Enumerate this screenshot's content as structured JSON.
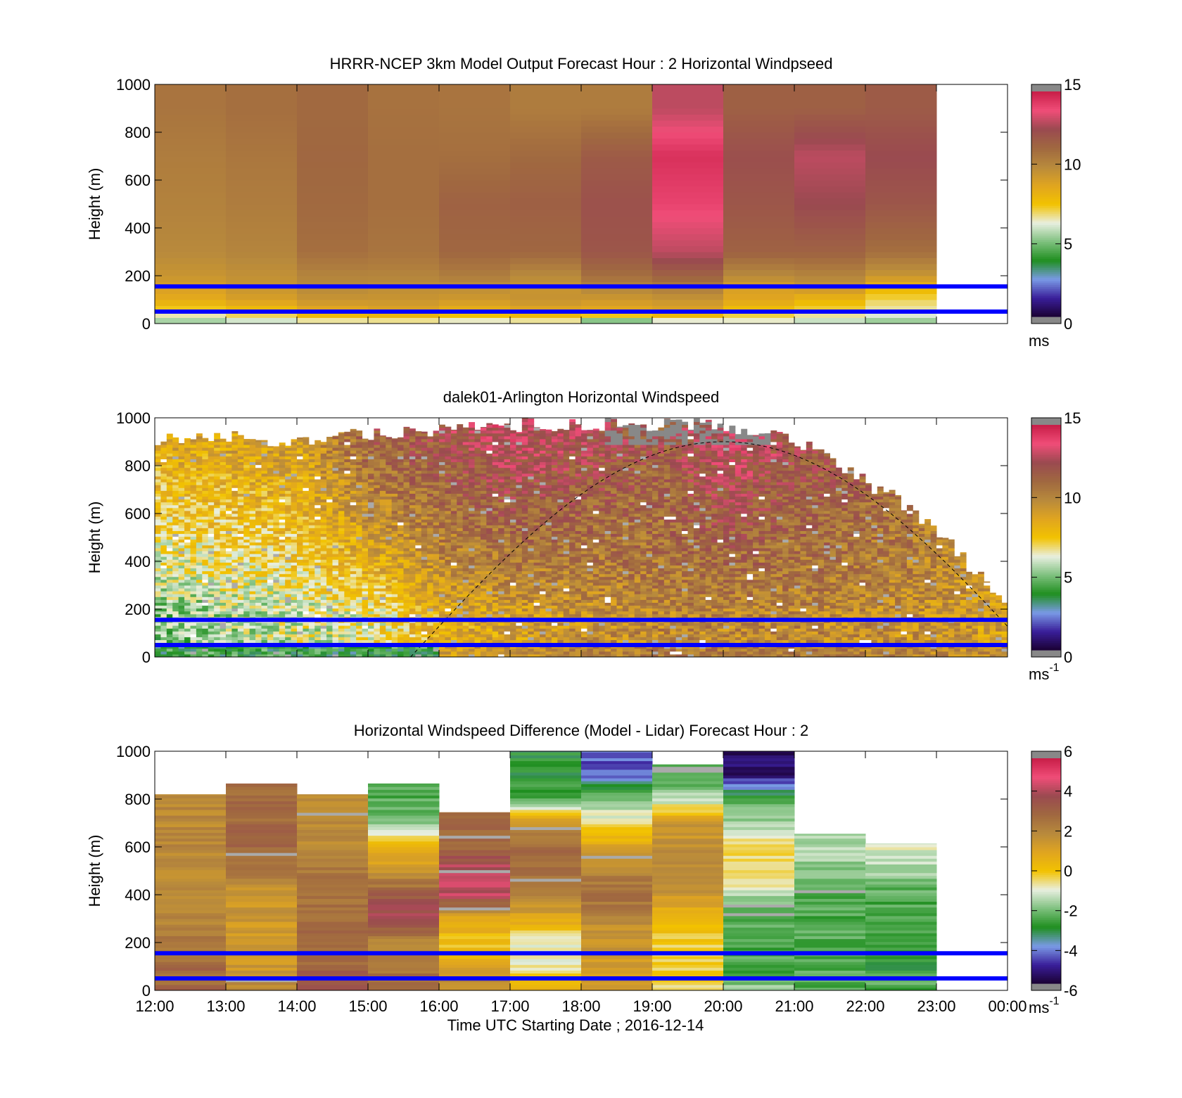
{
  "figure": {
    "xlabel": "Time UTC  Starting Date ; 2016-12-14"
  },
  "palettes": {
    "speed": {
      "colors": [
        "#1a0033",
        "#3a1f9a",
        "#7a9ae6",
        "#1f8f1f",
        "#7ec07e",
        "#e8efe0",
        "#f2c200",
        "#e0a520",
        "#b88a3c",
        "#a06840",
        "#9a4a50",
        "#f04d78",
        "#c81e48"
      ],
      "over": "#888888",
      "under": "#888888"
    },
    "diff": {
      "colors": [
        "#1a0033",
        "#3a1f9a",
        "#7a9ae6",
        "#1f8f1f",
        "#7ec07e",
        "#e8efe0",
        "#f2c200",
        "#e0a520",
        "#b88a3c",
        "#a06840",
        "#9a4a50",
        "#f04d78",
        "#c81e48"
      ],
      "over": "#888888",
      "under": "#888888"
    },
    "colorbar_gray_ends": true
  },
  "chart_data": [
    {
      "type": "heatmap",
      "name": "model",
      "title": "HRRR-NCEP 3km Model Output   Forecast Hour : 2 Horizontal Windpseed",
      "ylabel": "Height (m)",
      "ylim": [
        0,
        1000
      ],
      "yticks": [
        0,
        200,
        400,
        600,
        800,
        1000
      ],
      "xlim": [
        12,
        24
      ],
      "xticks": [
        12,
        13,
        14,
        15,
        16,
        17,
        18,
        19,
        20,
        21,
        22,
        23,
        24
      ],
      "show_xticklabels": false,
      "colorbar": {
        "min": 0,
        "max": 15,
        "ticks": [
          0,
          5,
          10,
          15
        ],
        "unit": "ms",
        "unit_sup": "",
        "palette": "speed"
      },
      "hlines": [
        50,
        155
      ],
      "hline_color": "#0000ff",
      "columns_start": 12,
      "columns_width": 1,
      "heights": [
        0,
        50,
        100,
        150,
        200,
        300,
        500,
        700,
        900,
        1000
      ],
      "columns": [
        [
          5,
          7,
          8.5,
          9,
          9.5,
          10,
          10.3,
          10.5,
          10.8
        ],
        [
          5.5,
          7.5,
          9,
          9.5,
          9.7,
          10.2,
          10.5,
          10.7,
          11
        ],
        [
          6,
          8.5,
          9.5,
          10,
          10.2,
          11,
          11.2,
          11.3,
          11.2
        ],
        [
          6,
          8.8,
          9.5,
          9.8,
          10.2,
          10.8,
          11,
          11,
          10.9
        ],
        [
          5.8,
          8.2,
          9.3,
          9.8,
          10.5,
          11.3,
          11.5,
          11,
          10.8
        ],
        [
          6,
          8.6,
          9.6,
          9.5,
          10,
          11.3,
          11.6,
          11.2,
          10.5
        ],
        [
          4,
          8.5,
          9.3,
          10.2,
          11,
          12,
          12.2,
          11.8,
          10.5
        ],
        [
          5.5,
          8.8,
          9.5,
          10.5,
          11.5,
          13,
          14,
          14.5,
          13
        ],
        [
          6,
          7.5,
          8.7,
          9,
          10,
          11.5,
          12,
          12.3,
          11.6
        ],
        [
          5.5,
          7,
          8,
          9.5,
          10.2,
          11.5,
          12.5,
          13,
          11.6
        ],
        [
          5,
          6.5,
          7,
          8,
          9.5,
          11,
          12,
          12.5,
          11.8
        ]
      ]
    },
    {
      "type": "heatmap",
      "name": "lidar",
      "title": "dalek01-Arlington  Horizontal Windspeed",
      "ylabel": "Height (m)",
      "ylim": [
        0,
        1000
      ],
      "yticks": [
        0,
        200,
        400,
        600,
        800,
        1000
      ],
      "xlim": [
        12,
        24
      ],
      "xticks": [
        12,
        13,
        14,
        15,
        16,
        17,
        18,
        19,
        20,
        21,
        22,
        23,
        24
      ],
      "show_xticklabels": false,
      "colorbar": {
        "min": 0,
        "max": 15,
        "ticks": [
          0,
          5,
          10,
          15
        ],
        "unit": "ms",
        "unit_sup": "-1",
        "palette": "speed"
      },
      "hlines": [
        50,
        155
      ],
      "hline_color": "#0000ff",
      "dashed_curve": {
        "start": 15.6,
        "peak": 20.0,
        "end": 24.0,
        "peak_height": 900
      },
      "lidar_top_by_hour": [
        [
          12,
          940
        ],
        [
          13,
          960
        ],
        [
          14,
          930
        ],
        [
          15,
          960
        ],
        [
          16,
          980
        ],
        [
          17,
          1000
        ],
        [
          18,
          1000
        ],
        [
          19,
          1000
        ],
        [
          20,
          1000
        ],
        [
          21,
          940
        ],
        [
          21.5,
          850
        ],
        [
          22,
          760
        ],
        [
          22.5,
          680
        ],
        [
          23,
          560
        ],
        [
          23.5,
          400
        ],
        [
          24,
          230
        ]
      ],
      "lidar_profile_low": [
        [
          12,
          5
        ],
        [
          14,
          6
        ],
        [
          15,
          6.5
        ],
        [
          16,
          8.5
        ],
        [
          17,
          9
        ],
        [
          19,
          10
        ],
        [
          21,
          10
        ],
        [
          23,
          9.5
        ],
        [
          24,
          9
        ]
      ],
      "lidar_profile_high": [
        [
          12,
          9
        ],
        [
          14,
          9.5
        ],
        [
          15,
          12
        ],
        [
          16,
          12.5
        ],
        [
          17,
          13.5
        ],
        [
          19,
          12
        ],
        [
          20,
          13.5
        ],
        [
          21,
          12.5
        ],
        [
          22,
          12
        ],
        [
          23,
          11
        ],
        [
          24,
          10
        ]
      ]
    },
    {
      "type": "heatmap",
      "name": "difference",
      "title": "Horizontal Windspeed Difference (Model - Lidar) Forecast Hour : 2",
      "ylabel": "Height (m)",
      "ylim": [
        0,
        1000
      ],
      "yticks": [
        0,
        200,
        400,
        600,
        800,
        1000
      ],
      "xlim": [
        12,
        24
      ],
      "xticks": [
        12,
        13,
        14,
        15,
        16,
        17,
        18,
        19,
        20,
        21,
        22,
        23,
        24
      ],
      "xticklabels": [
        "12:00",
        "13:00",
        "14:00",
        "15:00",
        "16:00",
        "17:00",
        "18:00",
        "19:00",
        "20:00",
        "21:00",
        "22:00",
        "23:00",
        "00:00"
      ],
      "show_xticklabels": true,
      "colorbar": {
        "min": -6,
        "max": 6,
        "ticks": [
          -6,
          -4,
          -2,
          0,
          2,
          4,
          6
        ],
        "unit": "ms",
        "unit_sup": "-1",
        "palette": "diff"
      },
      "hlines": [
        50,
        155
      ],
      "hline_color": "#0000ff",
      "columns_start": 12,
      "columns_width": 1,
      "column_tops": [
        820,
        865,
        820,
        865,
        745,
        1000,
        1000,
        945,
        1000,
        655,
        615
      ],
      "heights": [
        0,
        50,
        100,
        200,
        300,
        400,
        500,
        600,
        700,
        800,
        900,
        1000
      ],
      "columns": [
        [
          3,
          3,
          3,
          2.5,
          2,
          2,
          2,
          2,
          2,
          2,
          2
        ],
        [
          2,
          2,
          1.5,
          1.5,
          1.5,
          1.5,
          2.5,
          3,
          3,
          3,
          3
        ],
        [
          3.5,
          3.5,
          3,
          3,
          3,
          2.5,
          2.5,
          2,
          2,
          2,
          2
        ],
        [
          3,
          3,
          2.5,
          2,
          4,
          3.5,
          1.5,
          0.5,
          -2,
          -2.5,
          -2.5
        ],
        [
          2,
          2,
          1,
          0,
          1,
          4.5,
          4.5,
          3,
          3,
          3,
          3
        ],
        [
          1,
          0,
          -0.8,
          -1,
          1,
          2,
          3,
          3,
          1.5,
          -2.5,
          -3
        ],
        [
          1.5,
          1.5,
          1.5,
          1.5,
          2,
          3,
          2,
          1,
          -0.5,
          -2,
          -4.5
        ],
        [
          -0.3,
          -0.3,
          -0.2,
          -0.3,
          0.5,
          1.5,
          1.8,
          1.8,
          1.5,
          -1.5,
          -2.5
        ],
        [
          -1.5,
          -2.5,
          -2.5,
          -2.5,
          -2.5,
          -1.5,
          -0.3,
          -0.5,
          -1.5,
          -2.5,
          -5.5
        ],
        [
          -2.5,
          -2.5,
          -2.5,
          -2.5,
          -2.5,
          -2.5,
          -2,
          -1.5,
          -1.5,
          -1.5,
          -1.5
        ],
        [
          -2.5,
          -2.5,
          -3,
          -2.5,
          -2.5,
          -2.5,
          -1.5,
          -1,
          -1,
          -1,
          -1
        ]
      ]
    }
  ]
}
